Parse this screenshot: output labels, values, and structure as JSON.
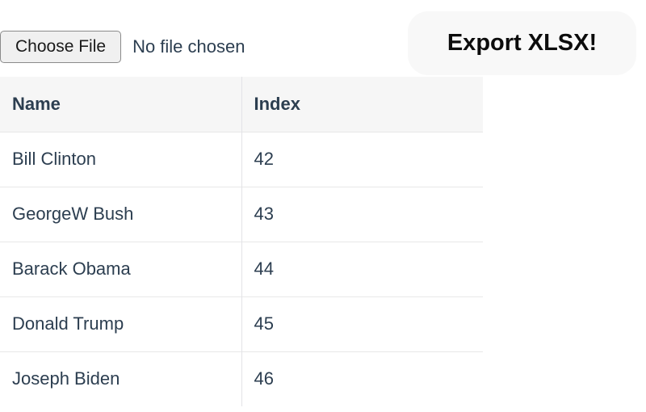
{
  "file_upload": {
    "button_label": "Choose File",
    "status_text": "No file chosen"
  },
  "export": {
    "button_label": "Export XLSX!"
  },
  "table": {
    "columns": [
      "Name",
      "Index"
    ],
    "rows": [
      {
        "name": "Bill Clinton",
        "index": "42"
      },
      {
        "name": "GeorgeW Bush",
        "index": "43"
      },
      {
        "name": "Barack Obama",
        "index": "44"
      },
      {
        "name": "Donald Trump",
        "index": "45"
      },
      {
        "name": "Joseph Biden",
        "index": "46"
      }
    ]
  },
  "colors": {
    "text": "#2c3e50",
    "table_header_bg": "#f6f6f6",
    "row_border": "#e8e8e8",
    "column_divider": "#e3e3e7",
    "export_button_bg": "#f8f8f8",
    "export_button_text": "#0c0c0c",
    "choose_button_bg": "#f0f0f0",
    "choose_button_border": "#8b8b8b"
  }
}
